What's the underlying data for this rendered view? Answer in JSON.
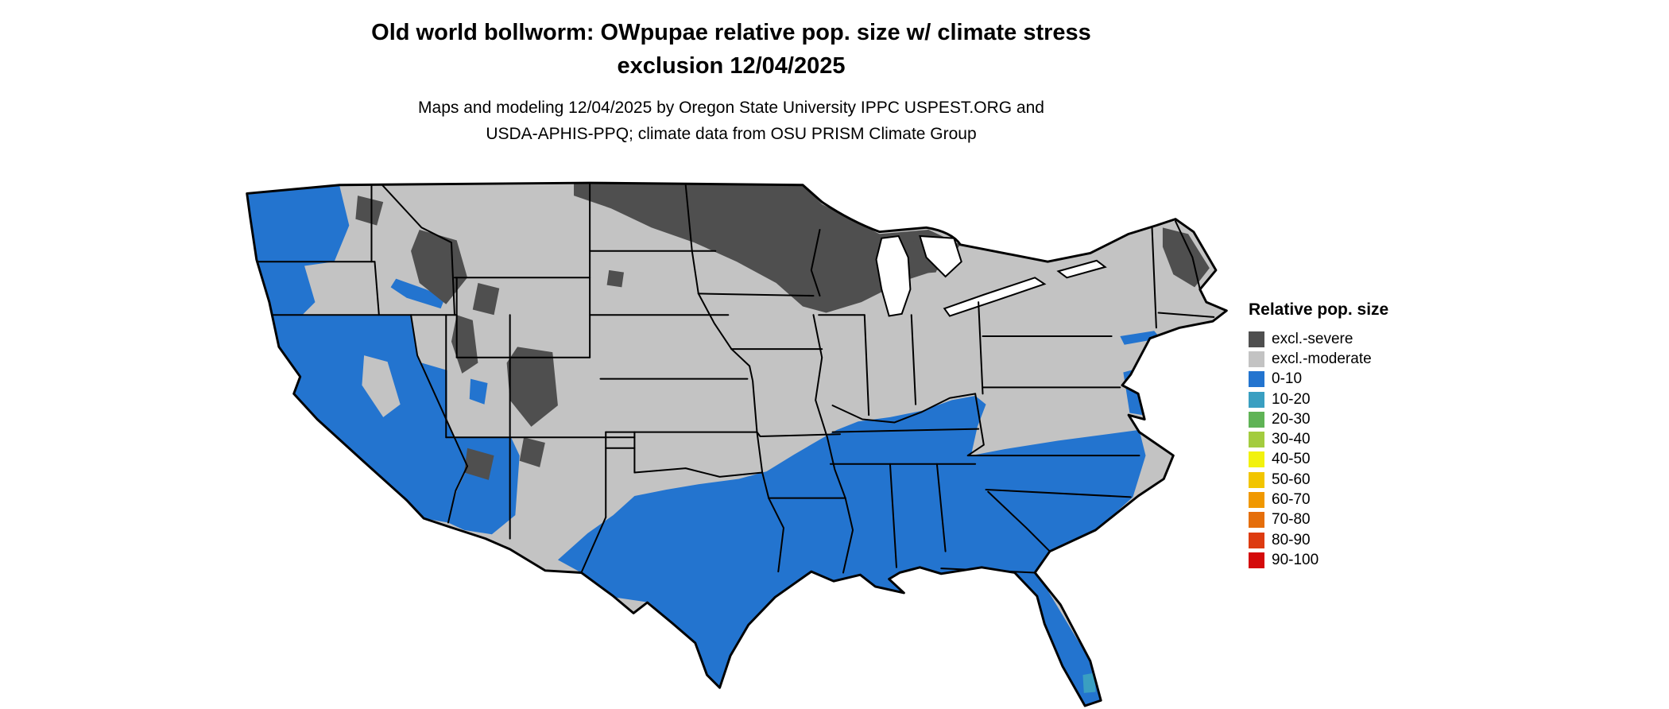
{
  "title": {
    "line1": "Old world bollworm: OWpupae relative pop. size w/ climate stress",
    "line2": "exclusion 12/04/2025"
  },
  "subtitle": {
    "line1": "Maps and modeling 12/04/2025 by Oregon State University IPPC USPEST.ORG and",
    "line2": "USDA-APHIS-PPQ; climate data from OSU PRISM Climate Group"
  },
  "legend": {
    "title": "Relative pop. size",
    "items": [
      {
        "label": "excl.-severe",
        "color": "#4f4f4f"
      },
      {
        "label": "excl.-moderate",
        "color": "#c3c3c3"
      },
      {
        "label": "0-10",
        "color": "#2374cf"
      },
      {
        "label": "10-20",
        "color": "#3a9fc1"
      },
      {
        "label": "20-30",
        "color": "#5fb356"
      },
      {
        "label": "30-40",
        "color": "#a3cc3f"
      },
      {
        "label": "40-50",
        "color": "#f2f20d"
      },
      {
        "label": "50-60",
        "color": "#f2c500"
      },
      {
        "label": "60-70",
        "color": "#f09800"
      },
      {
        "label": "70-80",
        "color": "#e56e0a"
      },
      {
        "label": "80-90",
        "color": "#dd3b10"
      },
      {
        "label": "90-100",
        "color": "#d40a0a"
      }
    ]
  },
  "map": {
    "region": "contiguous United States",
    "palette": {
      "excl_severe": "#4f4f4f",
      "excl_moderate": "#c3c3c3",
      "pop_0_10": "#2374cf",
      "pop_10_20": "#3a9fc1",
      "water": "#ffffff",
      "border": "#000000"
    }
  }
}
